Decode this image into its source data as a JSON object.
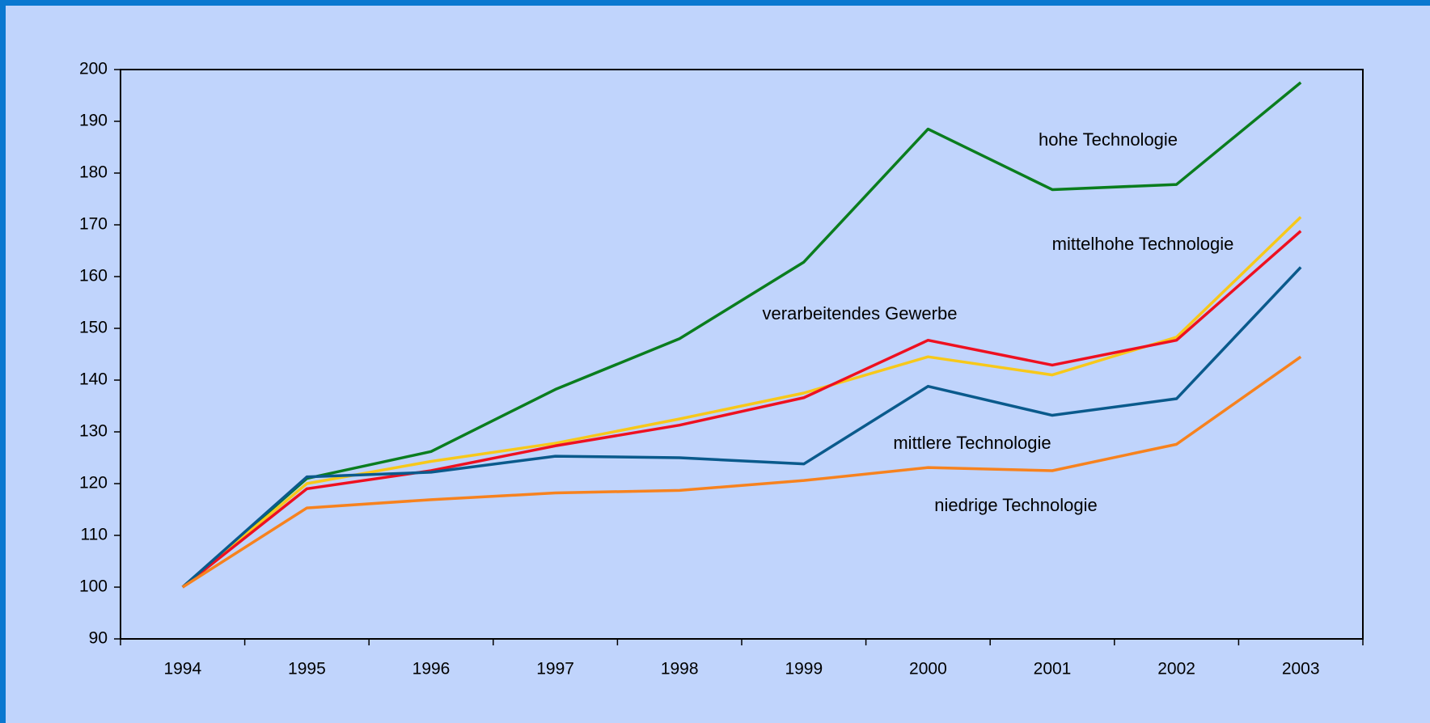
{
  "chart_data": {
    "type": "line",
    "categories": [
      "1994",
      "1995",
      "1996",
      "1997",
      "1998",
      "1999",
      "2000",
      "2001",
      "2002",
      "2003"
    ],
    "series": [
      {
        "name": "hohe Technologie",
        "color": "#0a7d1e",
        "values": [
          100,
          121,
          126.2,
          138.2,
          148,
          162.8,
          188.5,
          176.8,
          177.8,
          197.5
        ]
      },
      {
        "name": "mittelhohe Technologie",
        "color": "#f7c81a",
        "values": [
          100,
          120,
          124.3,
          127.8,
          132.5,
          137.5,
          144.5,
          141,
          148.3,
          171.5
        ]
      },
      {
        "name": "verarbeitendes Gewerbe",
        "color": "#ee1020",
        "values": [
          100,
          119,
          122.5,
          127.3,
          131.3,
          136.6,
          147.7,
          142.9,
          147.7,
          168.8
        ]
      },
      {
        "name": "mittlere Technologie",
        "color": "#0a5a8c",
        "values": [
          100,
          121.3,
          122.2,
          125.3,
          125,
          123.8,
          138.8,
          133.2,
          136.4,
          161.8
        ]
      },
      {
        "name": "niedrige Technologie",
        "color": "#f7821e",
        "values": [
          100,
          115.3,
          116.9,
          118.2,
          118.7,
          120.6,
          123.1,
          122.5,
          127.6,
          144.5
        ]
      }
    ],
    "ylim": [
      90,
      200
    ],
    "yticks": [
      90,
      100,
      110,
      120,
      130,
      140,
      150,
      160,
      170,
      180,
      190,
      200
    ],
    "grid": false
  }
}
